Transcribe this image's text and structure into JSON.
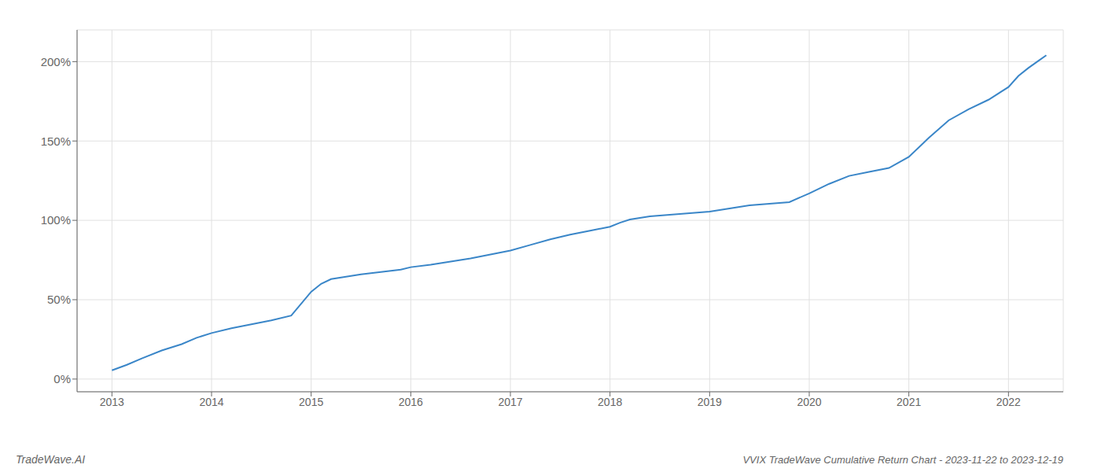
{
  "chart_data": {
    "type": "line",
    "title": "VVIX TradeWave Cumulative Return Chart - 2023-11-22 to 2023-12-19",
    "annotations": [
      "TradeWave.AI"
    ],
    "color": "#3a86c8",
    "grid": true,
    "x": [
      2013.0,
      2013.15,
      2013.3,
      2013.5,
      2013.7,
      2013.85,
      2014.0,
      2014.2,
      2014.4,
      2014.6,
      2014.8,
      2015.0,
      2015.1,
      2015.2,
      2015.35,
      2015.5,
      2015.7,
      2015.9,
      2016.0,
      2016.2,
      2016.4,
      2016.6,
      2016.8,
      2017.0,
      2017.2,
      2017.4,
      2017.6,
      2017.8,
      2018.0,
      2018.1,
      2018.2,
      2018.4,
      2018.6,
      2018.8,
      2019.0,
      2019.2,
      2019.4,
      2019.6,
      2019.8,
      2020.0,
      2020.2,
      2020.4,
      2020.6,
      2020.8,
      2021.0,
      2021.2,
      2021.4,
      2021.6,
      2021.8,
      2022.0,
      2022.1,
      2022.2,
      2022.3,
      2022.38
    ],
    "values": [
      5.5,
      9.0,
      13.0,
      18.0,
      22.0,
      26.0,
      29.0,
      32.0,
      34.5,
      37.0,
      40.0,
      55.0,
      60.0,
      63.0,
      64.5,
      66.0,
      67.5,
      69.0,
      70.5,
      72.0,
      74.0,
      76.0,
      78.5,
      81.0,
      84.5,
      88.0,
      91.0,
      93.5,
      96.0,
      98.5,
      100.5,
      102.5,
      103.5,
      104.5,
      105.5,
      107.5,
      109.5,
      110.5,
      111.5,
      117.0,
      123.0,
      128.0,
      130.5,
      133.0,
      140.0,
      152.0,
      163.0,
      170.0,
      176.0,
      184.0,
      191.0,
      196.0,
      200.5,
      204.0
    ],
    "xlim": [
      2012.65,
      2022.55
    ],
    "xticks": [
      2013,
      2014,
      2015,
      2016,
      2017,
      2018,
      2019,
      2020,
      2021,
      2022
    ],
    "ylim": [
      -8,
      220
    ],
    "yticks": [
      {
        "value": 0,
        "label": "0%"
      },
      {
        "value": 50,
        "label": "50%"
      },
      {
        "value": 100,
        "label": "100%"
      },
      {
        "value": 150,
        "label": "150%"
      },
      {
        "value": 200,
        "label": "200%"
      }
    ]
  }
}
